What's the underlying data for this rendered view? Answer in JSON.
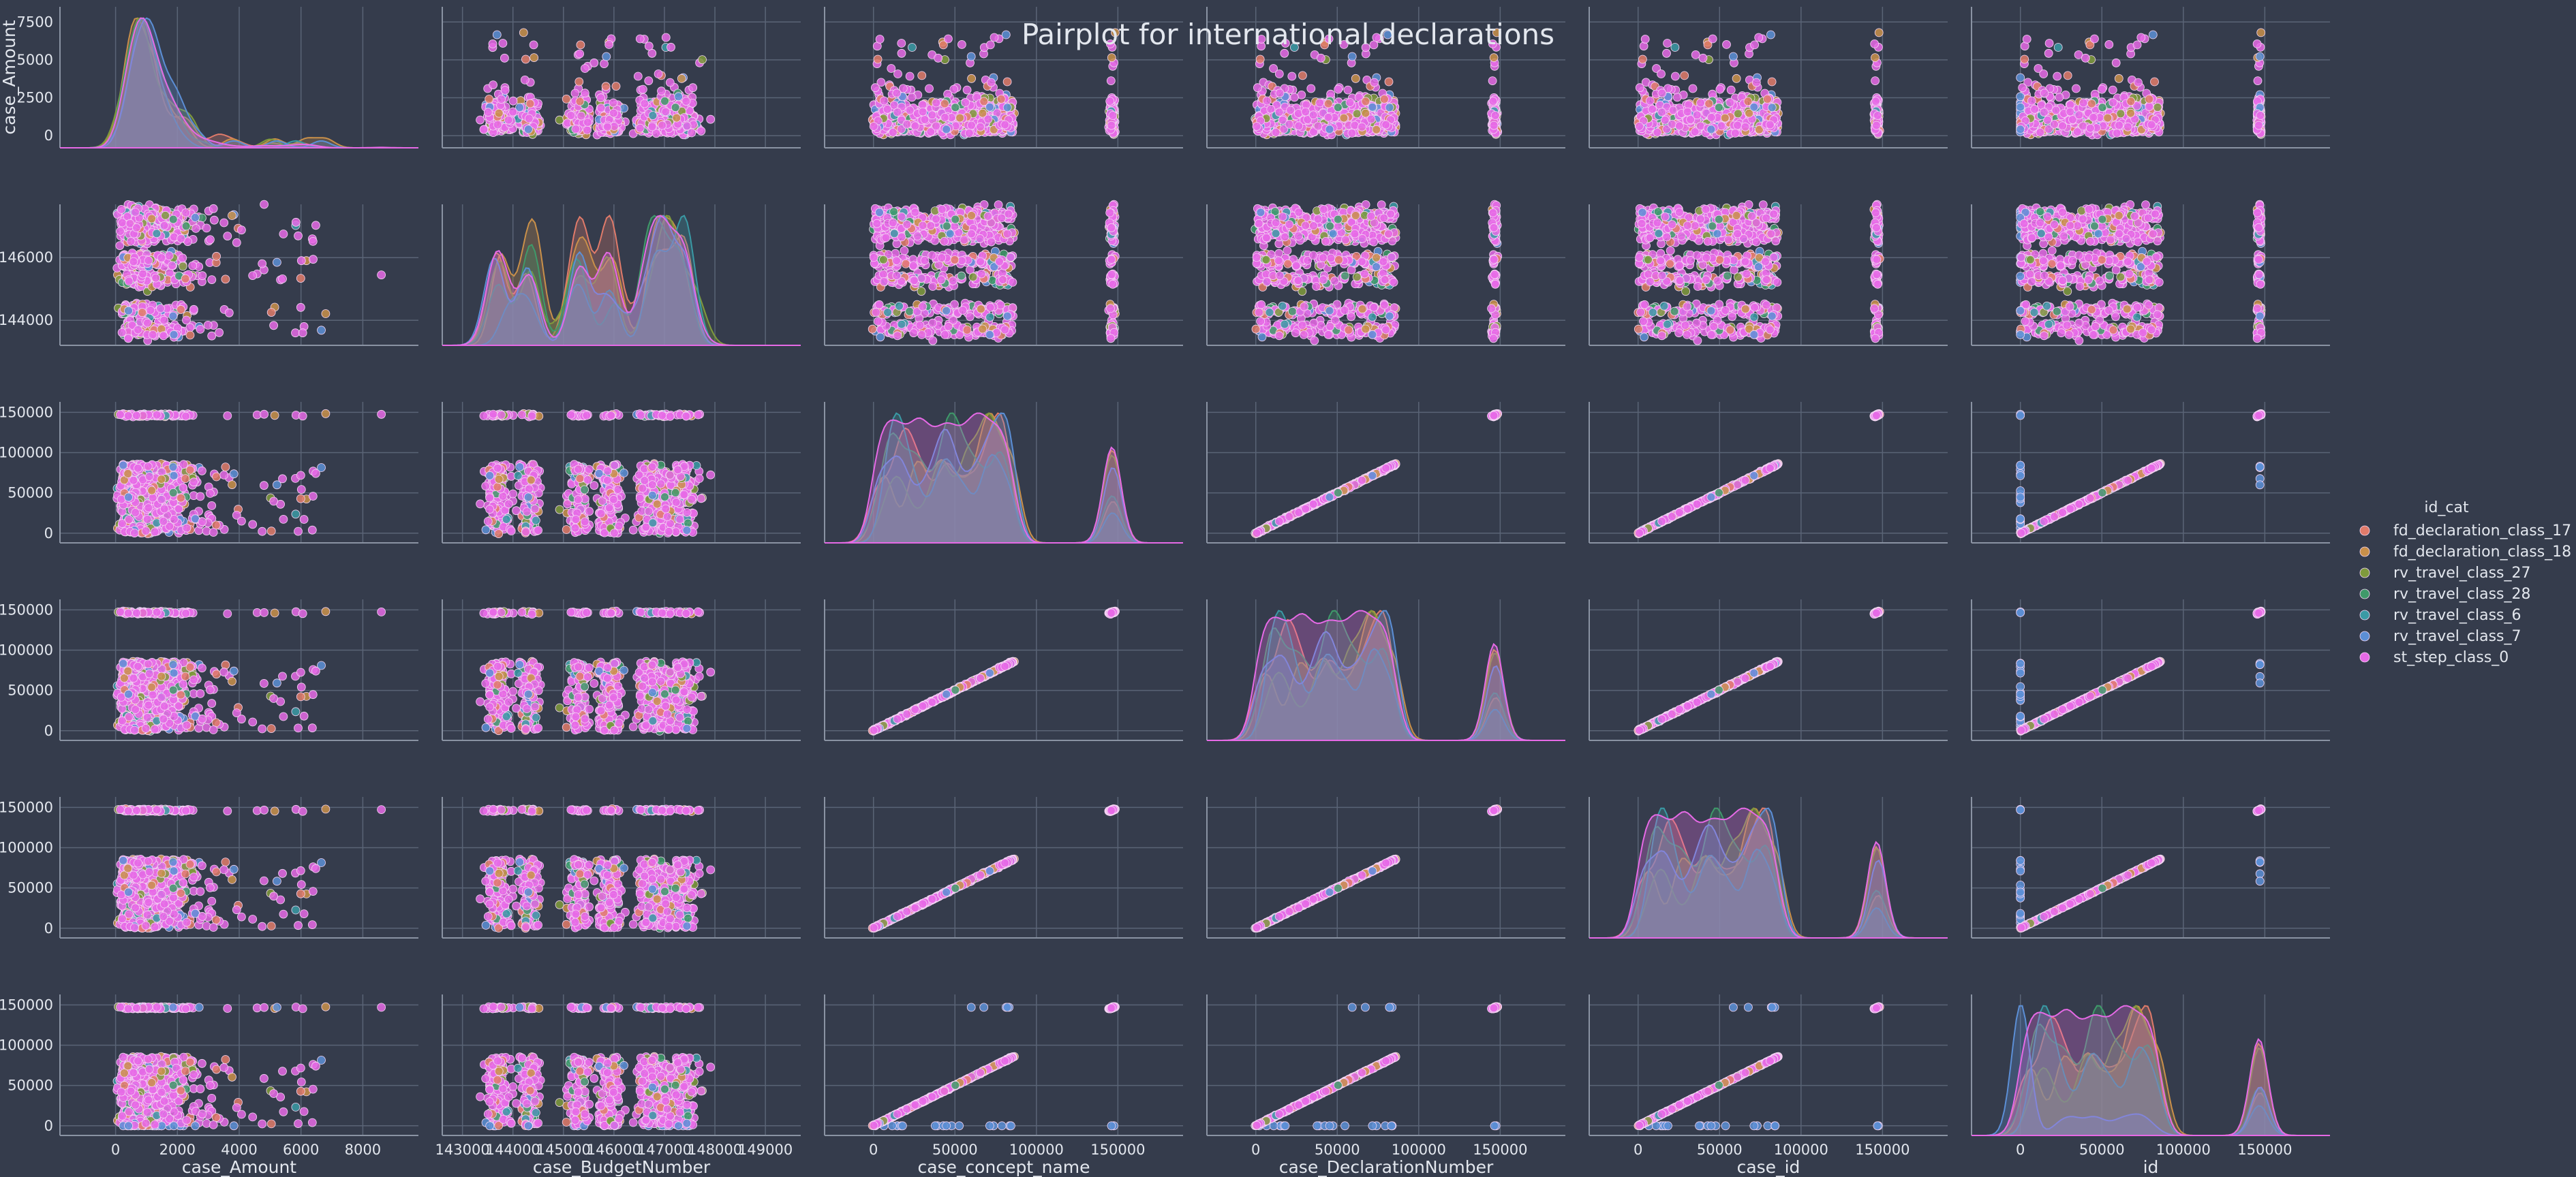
{
  "chart_data": {
    "type": "scatter",
    "title": "Pairplot for international declarations",
    "kind": "pairplot",
    "variables": [
      "case_Amount",
      "case_BudgetNumber",
      "case_concept_name",
      "case_DeclarationNumber",
      "case_id",
      "id"
    ],
    "diagonal": "kde",
    "grid": true,
    "legend": {
      "title": "id_cat",
      "placement": "right",
      "entries": [
        {
          "label": "fd_declaration_class_17",
          "color": "#e07b6a"
        },
        {
          "label": "fd_declaration_class_18",
          "color": "#c9904a"
        },
        {
          "label": "rv_travel_class_27",
          "color": "#7f9a3c"
        },
        {
          "label": "rv_travel_class_28",
          "color": "#3f9a6a"
        },
        {
          "label": "rv_travel_class_6",
          "color": "#3a9aa5"
        },
        {
          "label": "rv_travel_class_7",
          "color": "#5c8fd6"
        },
        {
          "label": "st_step_class_0",
          "color": "#e66ae6"
        }
      ]
    },
    "axes": [
      {
        "name": "case_Amount",
        "ylim": [
          -800,
          8500
        ],
        "xlim": [
          -1800,
          9800
        ],
        "yticks": [
          0,
          2500,
          5000,
          7500
        ],
        "xticks": [
          0,
          2000,
          4000,
          6000,
          8000
        ]
      },
      {
        "name": "case_BudgetNumber",
        "ylim": [
          143200,
          147700
        ],
        "xlim": [
          142600,
          149700
        ],
        "yticks": [
          144000,
          146000
        ],
        "xticks": [
          143000,
          144000,
          145000,
          146000,
          147000,
          148000,
          149000
        ]
      },
      {
        "name": "case_concept_name",
        "ylim": [
          -12000,
          163000
        ],
        "xlim": [
          -30000,
          190000
        ],
        "yticks": [
          0,
          50000,
          100000,
          150000
        ],
        "xticks": [
          0,
          50000,
          100000,
          150000
        ]
      },
      {
        "name": "case_DeclarationNumber",
        "ylim": [
          -12000,
          163000
        ],
        "xlim": [
          -30000,
          190000
        ],
        "yticks": [
          0,
          50000,
          100000,
          150000
        ],
        "xticks": [
          0,
          50000,
          100000,
          150000
        ]
      },
      {
        "name": "case_id",
        "ylim": [
          -12000,
          163000
        ],
        "xlim": [
          -30000,
          190000
        ],
        "yticks": [
          0,
          50000,
          100000,
          150000
        ],
        "xticks": [
          0,
          50000,
          100000,
          150000
        ]
      },
      {
        "name": "id",
        "ylim": [
          -12000,
          163000
        ],
        "xlim": [
          -30000,
          190000
        ],
        "yticks": [
          0,
          50000,
          100000,
          150000
        ],
        "xticks": [
          0,
          50000,
          100000,
          150000
        ]
      }
    ],
    "notes": "case_concept_name, case_DeclarationNumber, case_id and id are nearly identical: points lie on the diagonal from 0 to about 86000, plus a cluster near 145000-148000. case_BudgetNumber clusters between 143500 and 147500. case_Amount mostly 0-3000, max about 8600."
  }
}
